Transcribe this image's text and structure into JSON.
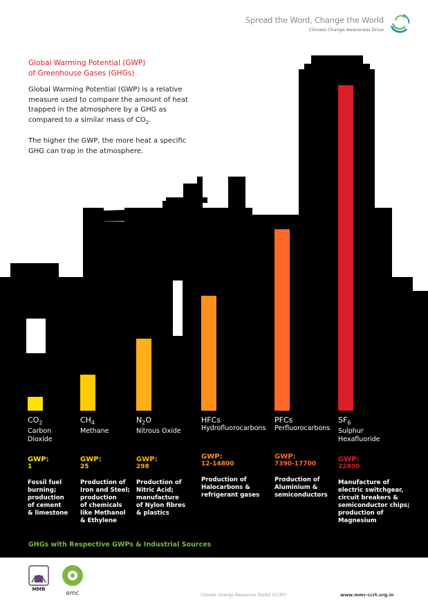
{
  "header": {
    "tagline": "Spread the Word, Change the World",
    "subtagline": "Climate Change Awareness Drive"
  },
  "intro": {
    "title_line1": "Global Warming Potential (GWP)",
    "title_line2": "of Greenhouse Gases (GHGs)",
    "para1_a": "Global Warming Potential (GWP) is a relative measure used to compare the amount of heat trapped in the atmosphere by a GHG as compared to a similar mass of CO",
    "para1_sub": "2",
    "para1_b": ".",
    "para2": "The higher the GWP, the more heat a specific GHG can trap in the atmosphere."
  },
  "colors": {
    "background_dark": "#000000",
    "accent_red": "#d6202b",
    "footer_green": "#7db740"
  },
  "gwp_label": "GWP:",
  "chart_data": {
    "type": "bar",
    "categories": [
      "CO2",
      "CH4",
      "N2O",
      "HFCs",
      "PFCs",
      "SF6"
    ],
    "series": [
      {
        "values": [
          1,
          25,
          298,
          14800,
          17700,
          22800
        ]
      }
    ],
    "colors": [
      "#ffe000",
      "#ffcc00",
      "#ffae1a",
      "#ff9020",
      "#ff6a28",
      "#d81e27"
    ],
    "gases": [
      {
        "main": "CO",
        "sub": "2",
        "full1": "Carbon",
        "full2": "Dioxide",
        "gwp": "1",
        "src": [
          "Fossil fuel",
          "burning;",
          "production",
          "of cement",
          "& limestone"
        ]
      },
      {
        "main": "CH",
        "sub": "4",
        "full1": "Methane",
        "full2": "",
        "gwp": "25",
        "src": [
          "Production of",
          "Iron and Steel;",
          "production",
          "of chemicals",
          "like Methanol",
          "& Ethylene"
        ]
      },
      {
        "main": "N",
        "sub": "2",
        "main2": "O",
        "full1": "Nitrous Oxide",
        "full2": "",
        "gwp": "298",
        "src": [
          "Production of",
          "Nitric Acid;",
          "manufacture",
          "of Nylon fibres",
          "& plastics"
        ]
      },
      {
        "main": "HFCs",
        "sub": "",
        "full1": "Hydrofluorocarbons",
        "full2": "",
        "gwp": "12-14800",
        "src": [
          "Production of",
          "Halocarbons &",
          "refrigerant gases"
        ]
      },
      {
        "main": "PFCs",
        "sub": "",
        "full1": "Perfluorocarbons",
        "full2": "",
        "gwp": "7390-17700",
        "src": [
          "Production of",
          "Aluminium &",
          "semiconductors"
        ]
      },
      {
        "main": "SF",
        "sub": "6",
        "full1": "Sulphur",
        "full2": "Hexafluoride",
        "gwp": "22800",
        "src": [
          "Manufacture of",
          "electric switchgear,",
          "circuit breakers &",
          "semiconductor chips;",
          "production of",
          "Magnesium"
        ]
      }
    ]
  },
  "footer": {
    "title": "GHGs with Respective GWPs & Industrial Sources",
    "logo1_text": "MMR",
    "logo2_text": "emc",
    "credit": "Climate Change Resources Toolkit (CCRT)",
    "site": "www.mmr-ccrt.org.in"
  }
}
